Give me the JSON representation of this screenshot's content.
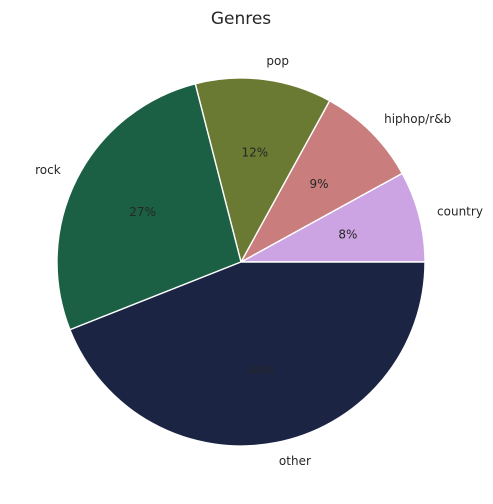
{
  "chart_data": {
    "type": "pie",
    "title": "Genres",
    "slices": [
      {
        "label": "country",
        "value": 8,
        "pct_text": "8%",
        "color": "#cca3e3"
      },
      {
        "label": "hiphop/r&b",
        "value": 9,
        "pct_text": "9%",
        "color": "#c97d7d"
      },
      {
        "label": "pop",
        "value": 12,
        "pct_text": "12%",
        "color": "#6b7a33"
      },
      {
        "label": "rock",
        "value": 27,
        "pct_text": "27%",
        "color": "#1b6045"
      },
      {
        "label": "other",
        "value": 44,
        "pct_text": "44%",
        "color": "#1b2443"
      }
    ],
    "start_angle_deg": 0,
    "direction": "counterclockwise"
  }
}
